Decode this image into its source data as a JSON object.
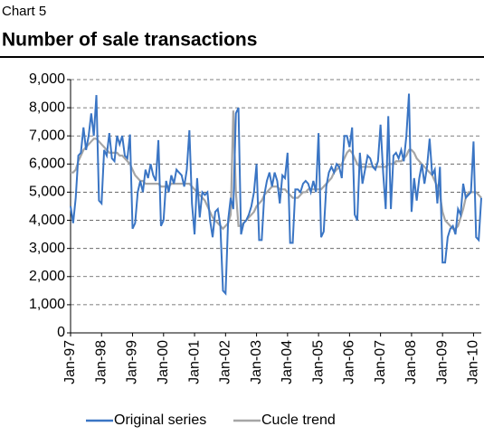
{
  "chart_data": {
    "type": "line",
    "label": "Chart 5",
    "title": "Number of sale transactions",
    "categories": [
      "Jan-97",
      null,
      null,
      null,
      null,
      null,
      null,
      null,
      null,
      null,
      null,
      null,
      "Jan-98",
      null,
      null,
      null,
      null,
      null,
      null,
      null,
      null,
      null,
      null,
      null,
      "Jan-99",
      null,
      null,
      null,
      null,
      null,
      null,
      null,
      null,
      null,
      null,
      null,
      "Jan-00",
      null,
      null,
      null,
      null,
      null,
      null,
      null,
      null,
      null,
      null,
      null,
      "Jan-01",
      null,
      null,
      null,
      null,
      null,
      null,
      null,
      null,
      null,
      null,
      null,
      "Jan-02",
      null,
      null,
      null,
      null,
      null,
      null,
      null,
      null,
      null,
      null,
      null,
      "Jan-03",
      null,
      null,
      null,
      null,
      null,
      null,
      null,
      null,
      null,
      null,
      null,
      "Jan-04",
      null,
      null,
      null,
      null,
      null,
      null,
      null,
      null,
      null,
      null,
      null,
      "Jan-05",
      null,
      null,
      null,
      null,
      null,
      null,
      null,
      null,
      null,
      null,
      null,
      "Jan-06",
      null,
      null,
      null,
      null,
      null,
      null,
      null,
      null,
      null,
      null,
      null,
      "Jan-07",
      null,
      null,
      null,
      null,
      null,
      null,
      null,
      null,
      null,
      null,
      null,
      "Jan-08",
      null,
      null,
      null,
      null,
      null,
      null,
      null,
      null,
      null,
      null,
      null,
      "Jan-09",
      null,
      null,
      null,
      null,
      null,
      null,
      null,
      null,
      null,
      null,
      null,
      "Jan-10",
      null,
      null,
      null
    ],
    "series": [
      {
        "name": "Original series",
        "color": "#3a75c4",
        "values": [
          4500,
          3900,
          4800,
          6300,
          6400,
          7300,
          6500,
          7000,
          7800,
          7000,
          8450,
          4700,
          4600,
          6500,
          6300,
          7100,
          6200,
          6100,
          7000,
          6700,
          7000,
          6300,
          6200,
          7050,
          3700,
          3900,
          5000,
          5400,
          5000,
          5800,
          5500,
          6000,
          5600,
          5400,
          6850,
          3800,
          4000,
          5400,
          5000,
          5600,
          5300,
          5800,
          5700,
          5600,
          5200,
          5800,
          7200,
          4600,
          3500,
          5500,
          4100,
          5000,
          4900,
          5000,
          4000,
          3400,
          4300,
          4400,
          3800,
          1500,
          1400,
          4000,
          4800,
          4400,
          7800,
          8000,
          3500,
          3900,
          4000,
          4200,
          4500,
          5000,
          6000,
          3300,
          3300,
          4900,
          5400,
          5700,
          5200,
          5700,
          5400,
          4600,
          5600,
          5500,
          6400,
          3200,
          3200,
          5100,
          5100,
          5000,
          5300,
          5400,
          5300,
          5000,
          5400,
          5000,
          7100,
          3400,
          3600,
          5200,
          5700,
          5900,
          5700,
          6000,
          5900,
          5500,
          7000,
          7000,
          6600,
          7300,
          4200,
          4000,
          6400,
          5300,
          5800,
          6300,
          6200,
          5900,
          5800,
          6100,
          7400,
          5700,
          4400,
          7700,
          4400,
          6300,
          6400,
          6200,
          6500,
          6100,
          7000,
          8500,
          4300,
          5500,
          4700,
          5500,
          6000,
          5300,
          5900,
          6900,
          5600,
          5800,
          4600,
          5900,
          2500,
          2500,
          3400,
          3700,
          3800,
          3500,
          4400,
          4200,
          5300,
          4800,
          4900,
          5000,
          6800,
          3400,
          3300,
          4800
        ]
      },
      {
        "name": "Cucle trend",
        "color": "#a6a6a6",
        "values": [
          5700,
          5700,
          5800,
          6100,
          6300,
          6500,
          6600,
          6700,
          6800,
          6900,
          6900,
          6800,
          6700,
          6600,
          6500,
          6400,
          6400,
          6400,
          6400,
          6300,
          6300,
          6200,
          6100,
          6000,
          5800,
          5600,
          5500,
          5400,
          5400,
          5300,
          5300,
          5300,
          5300,
          5300,
          5300,
          5200,
          5200,
          5200,
          5200,
          5300,
          5300,
          5300,
          5300,
          5300,
          5300,
          5300,
          5300,
          5200,
          5100,
          5000,
          4900,
          4800,
          4700,
          4500,
          4300,
          4100,
          4000,
          3900,
          3800,
          3700,
          3800,
          3900,
          4200,
          7900,
          5000,
          3800,
          3800,
          3900,
          4000,
          4100,
          4200,
          4300,
          4500,
          4600,
          4700,
          4900,
          5000,
          5100,
          5200,
          5200,
          5200,
          5100,
          5100,
          5100,
          5000,
          4900,
          4800,
          4800,
          4800,
          4900,
          5000,
          5000,
          5100,
          5100,
          5100,
          5100,
          5100,
          5100,
          5200,
          5300,
          5400,
          5500,
          5700,
          5800,
          5900,
          6000,
          6200,
          6400,
          6500,
          6400,
          6200,
          6000,
          5900,
          5900,
          5900,
          5900,
          5900,
          5900,
          5900,
          5900,
          5900,
          5900,
          5900,
          6000,
          6000,
          6000,
          6100,
          6100,
          6100,
          6200,
          6300,
          6500,
          6500,
          6400,
          6200,
          6100,
          6000,
          5900,
          5800,
          5700,
          5600,
          5400,
          5200,
          4900,
          4300,
          4000,
          3900,
          3800,
          3700,
          3700,
          3800,
          4100,
          4400,
          4800,
          5000,
          5000,
          5000,
          5000,
          4900,
          4800
        ]
      }
    ],
    "ylim": [
      0,
      9000
    ],
    "yticks": [
      0,
      {
        "value": 1000,
        "label": "1,000"
      },
      {
        "value": 2000,
        "label": "2,000"
      },
      {
        "value": 3000,
        "label": "3,000"
      },
      {
        "value": 4000,
        "label": "4,000"
      },
      {
        "value": 5000,
        "label": "5,000"
      },
      {
        "value": 6000,
        "label": "6,000"
      },
      {
        "value": 7000,
        "label": "7,000"
      },
      {
        "value": 8000,
        "label": "8,000"
      },
      {
        "value": 9000,
        "label": "9,000"
      }
    ],
    "grid": true
  }
}
